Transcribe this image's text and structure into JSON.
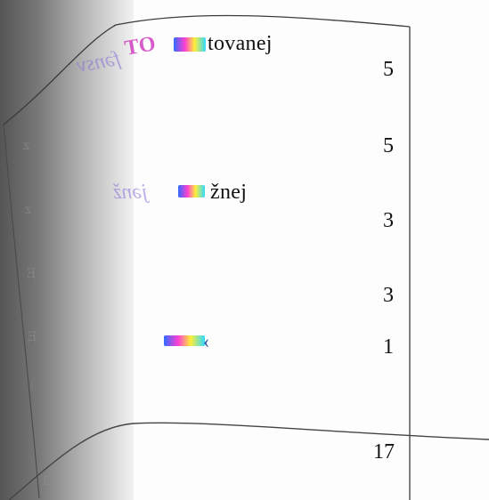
{
  "fragments": {
    "line1_text": "tovanej",
    "line2_text": "žnej"
  },
  "numbers": [
    "5",
    "5",
    "3",
    "3",
    "1"
  ],
  "total": "17",
  "colors": {
    "ink": "#111111",
    "shadow": "#6a6a6a",
    "line": "#444444"
  }
}
